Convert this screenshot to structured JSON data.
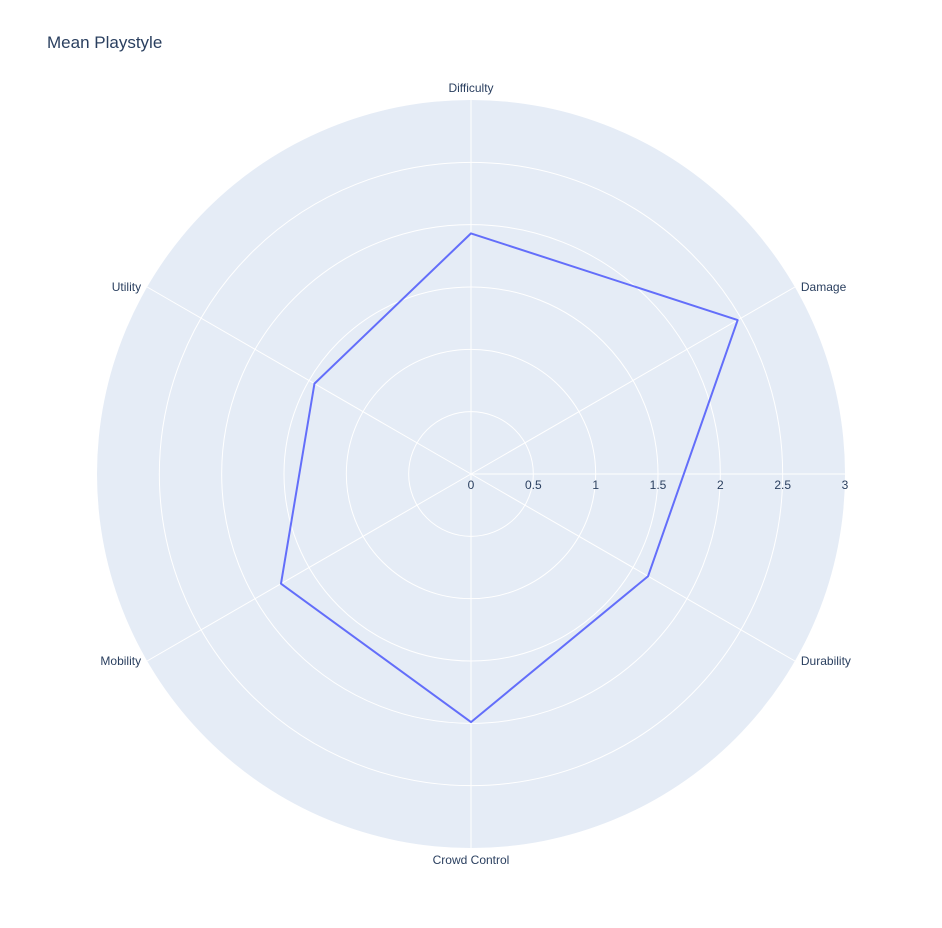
{
  "chart_data": {
    "type": "radar",
    "title": "Mean Playstyle",
    "categories": [
      "Difficulty",
      "Damage",
      "Durability",
      "Crowd Control",
      "Mobility",
      "Utility"
    ],
    "series": [
      {
        "values": [
          1.93,
          2.47,
          1.64,
          1.99,
          1.76,
          1.45
        ]
      }
    ],
    "radial_range": [
      0,
      3
    ],
    "radial_ticks": [
      "0",
      "0.5",
      "1",
      "1.5",
      "2",
      "2.5",
      "3"
    ],
    "grid": true,
    "colors": {
      "plot_bg": "#e5ecf6",
      "grid": "#ffffff",
      "line": "#636efa",
      "text": "#2a3f5f"
    }
  }
}
